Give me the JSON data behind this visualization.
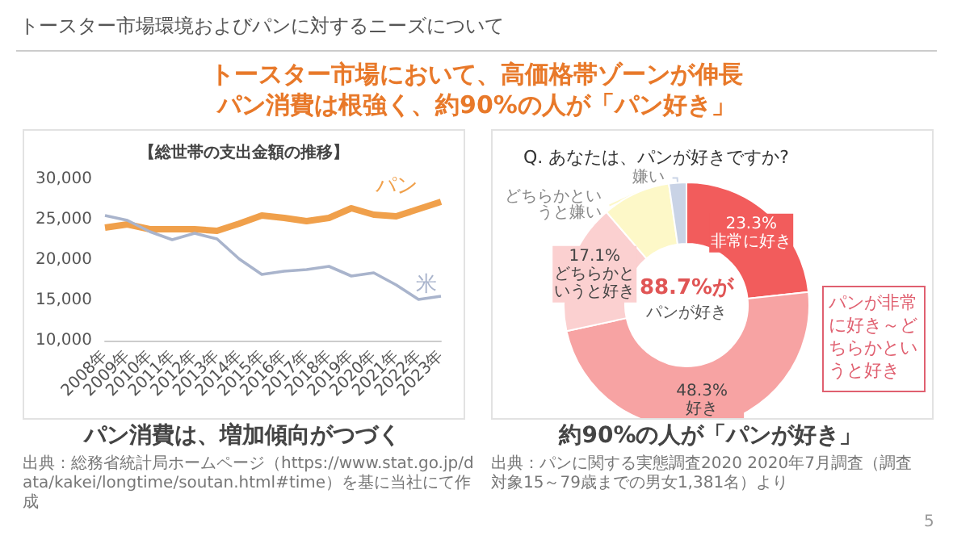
{
  "chart_data": [
    {
      "type": "line",
      "title": "【総世帯の支出金額の推移】",
      "categories": [
        "2008年",
        "2009年",
        "2010年",
        "2011年",
        "2012年",
        "2013年",
        "2014年",
        "2015年",
        "2016年",
        "2017年",
        "2018年",
        "2019年",
        "2020年",
        "2021年",
        "2022年",
        "2023年"
      ],
      "series": [
        {
          "name": "パン",
          "color": "#f0a04b",
          "values": [
            24000,
            24400,
            23800,
            23800,
            23800,
            23600,
            24500,
            25500,
            25200,
            24800,
            25200,
            26400,
            25600,
            25400,
            26300,
            27200
          ]
        },
        {
          "name": "米",
          "color": "#a9b4cc",
          "values": [
            25500,
            24900,
            23500,
            22500,
            23300,
            22600,
            20100,
            18200,
            18600,
            18800,
            19200,
            18000,
            18400,
            16900,
            15100,
            15500
          ]
        }
      ],
      "ylim": [
        10000,
        30000
      ],
      "yticks": [
        {
          "value": 10000,
          "label": "10,000"
        },
        {
          "value": 15000,
          "label": "15,000"
        },
        {
          "value": 20000,
          "label": "20,000"
        },
        {
          "value": 25000,
          "label": "25,000"
        },
        {
          "value": 30000,
          "label": "30,000"
        }
      ],
      "marker": "none",
      "annotations": [
        "トースター市場環境およびパンに対するニーズについて",
        "トースター市場において、高価格帯ゾーンが伸長",
        "パン消費は根強く、約90%の人が「パン好き」",
        "パン消費は、増加傾向がつづく",
        "出典：総務省統計局ホームページ（https://www.stat.go.jp/data/kakei/longtime/soutan.html#time）を基に当社にて作成"
      ]
    },
    {
      "type": "donut",
      "title": "Q. あなたは、パンが好きですか?",
      "categories": [
        "非常に好き",
        "好き",
        "どちらかというと好き",
        "どちらかというと嫌い",
        "嫌い"
      ],
      "values": [
        23.3,
        48.3,
        17.1,
        9.0,
        2.3
      ],
      "colors": [
        "#f25c5c",
        "#f7a3a3",
        "#fbd0d0",
        "#fdf8c8",
        "#c9d3e6"
      ],
      "value_labels": [
        "23.3%",
        "48.3%",
        "17.1%",
        null,
        null
      ],
      "annotations": [
        "88.7%が",
        "パンが好き",
        "パンが非常に好き～どちらかというと好き",
        "約90%の人が「パンが好き」",
        "出典：パンに関する実態調査2020 2020年7月調査（調査対象15～79歳までの男女1,381名）より",
        "5"
      ]
    }
  ]
}
